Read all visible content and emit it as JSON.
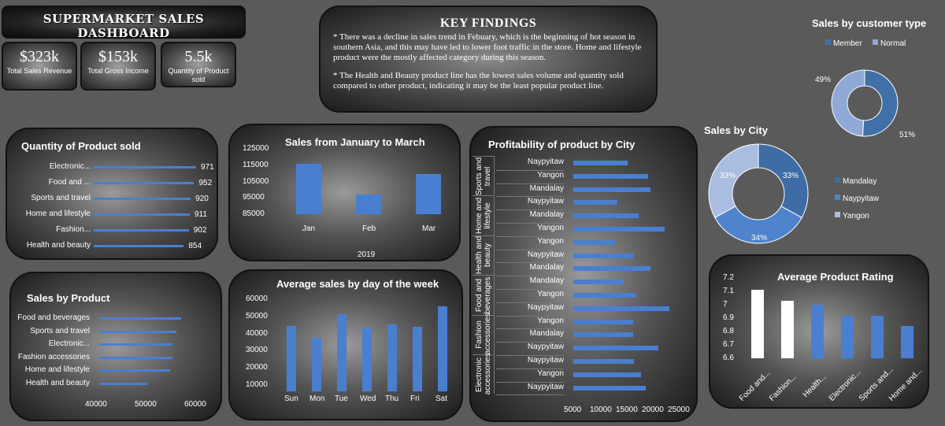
{
  "dashboard": {
    "title": "SUPERMARKET  SALES DASHBOARD",
    "kpis": [
      {
        "value": "$323k",
        "caption": "Total Sales Revenue"
      },
      {
        "value": "$153k",
        "caption": "Total Gross Income"
      },
      {
        "value": "5.5k",
        "caption": "Quantity of Product sold"
      }
    ],
    "findings": {
      "heading": "KEY FINDINGS",
      "p1": "* There was a decline in sales trend in Febuary, which is the beginning of hot season in southern Asia, and this may have led to lower foot traffic in the store. Home and lifestyle product were the mostly affected category during this season.",
      "p2": "* The Health and Beauty product line has the lowest sales volume and quantity sold compared to other product, indicating it may be the least popular product line."
    }
  },
  "chart_data": [
    {
      "id": "quantity",
      "type": "bar",
      "title": "Quantity of Product sold",
      "categories": [
        "Electronic...",
        "Food and ...",
        "Sports and travel",
        "Home and lifestyle",
        "Fashion...",
        "Health and beauty"
      ],
      "values": [
        971,
        952,
        920,
        911,
        902,
        854
      ],
      "value_labels": [
        "971",
        "952",
        "920",
        "911",
        "902",
        "854"
      ],
      "orientation": "horizontal"
    },
    {
      "id": "monthly",
      "type": "bar",
      "title": "Sales from January to March",
      "categories": [
        "Jan",
        "Feb",
        "Mar"
      ],
      "values": [
        116000,
        97000,
        109500
      ],
      "yticks": [
        "125000",
        "115000",
        "105000",
        "95000",
        "85000"
      ],
      "ylim": [
        85000,
        125000
      ],
      "xlabel": "2019"
    },
    {
      "id": "profitability",
      "type": "bar",
      "title": "Profitability of product by City",
      "orientation": "horizontal",
      "groups": [
        {
          "name": "Sports and travel",
          "rows": [
            {
              "city": "Naypyitaw",
              "value": 15200
            },
            {
              "city": "Yangon",
              "value": 19500
            },
            {
              "city": "Mandalay",
              "value": 20000
            }
          ]
        },
        {
          "name": "Home and lifestyle",
          "rows": [
            {
              "city": "Naypyitaw",
              "value": 13000
            },
            {
              "city": "Mandalay",
              "value": 17500
            },
            {
              "city": "Yangon",
              "value": 23000
            }
          ]
        },
        {
          "name": "Health and beauty",
          "rows": [
            {
              "city": "Yangon",
              "value": 12500
            },
            {
              "city": "Naypyitaw",
              "value": 16300
            },
            {
              "city": "Mandalay",
              "value": 20000
            }
          ]
        },
        {
          "name": "Food and beverages",
          "rows": [
            {
              "city": "Mandalay",
              "value": 14300
            },
            {
              "city": "Yangon",
              "value": 17000
            },
            {
              "city": "Naypyitaw",
              "value": 24000
            }
          ]
        },
        {
          "name": "Fashion accessories",
          "rows": [
            {
              "city": "Yangon",
              "value": 16300
            },
            {
              "city": "Mandalay",
              "value": 16300
            },
            {
              "city": "Naypyitaw",
              "value": 21600
            }
          ]
        },
        {
          "name": "Electronic accessories",
          "rows": [
            {
              "city": "Naypyitaw",
              "value": 16500
            },
            {
              "city": "Yangon",
              "value": 18000
            },
            {
              "city": "Naypyitaw",
              "value": 19000
            }
          ]
        }
      ],
      "xticks": [
        "5000",
        "10000",
        "15000",
        "20000",
        "25000"
      ],
      "xlim": [
        5000,
        25000
      ]
    },
    {
      "id": "customer",
      "type": "pie",
      "title": "Sales by customer type",
      "donut": true,
      "slices": [
        {
          "name": "Member",
          "value": 51,
          "label": "51%",
          "color": "#4170a8"
        },
        {
          "name": "Normal",
          "value": 49,
          "label": "49%",
          "color": "#8ea9d6"
        }
      ],
      "legend": "top"
    },
    {
      "id": "city",
      "type": "pie",
      "title": "Sales by City",
      "donut": true,
      "slices": [
        {
          "name": "Mandalay",
          "value": 33,
          "label": "33%",
          "color": "#3e6da6"
        },
        {
          "name": "Naypyitaw",
          "value": 34,
          "label": "34%",
          "color": "#4f84cc"
        },
        {
          "name": "Yangon",
          "value": 33,
          "label": "33%",
          "color": "#a8bde0"
        }
      ],
      "legend": "right"
    },
    {
      "id": "product_sales",
      "type": "bar",
      "title": "Sales by Product",
      "orientation": "horizontal",
      "categories": [
        "Food and beverages",
        "Sports and travel",
        "Electronic...",
        "Fashion accessories",
        "Home and lifestyle",
        "Health and beauty"
      ],
      "values": [
        56100,
        55100,
        54300,
        54300,
        53900,
        49200
      ],
      "xticks": [
        "40000",
        "50000",
        "60000"
      ],
      "xlim": [
        40000,
        60000
      ]
    },
    {
      "id": "weekday",
      "type": "bar",
      "title": "Average sales by day of the week",
      "categories": [
        "Sun",
        "Mon",
        "Tue",
        "Wed",
        "Thu",
        "Fri",
        "Sat"
      ],
      "values": [
        44500,
        37600,
        51500,
        43700,
        45400,
        43900,
        56100
      ],
      "yticks": [
        "60000",
        "50000",
        "40000",
        "30000",
        "20000",
        "10000"
      ],
      "ylim": [
        10000,
        60000
      ]
    },
    {
      "id": "rating",
      "type": "bar",
      "title": "Average Product Rating",
      "categories": [
        "Food and...",
        "Fashion...",
        "Health...",
        "Electronic...",
        "Sports and...",
        "Home and..."
      ],
      "values": [
        7.11,
        7.03,
        7.0,
        6.92,
        6.92,
        6.84
      ],
      "colors": [
        "#ffffff",
        "#ffffff",
        "#4a7fd0",
        "#4a7fd0",
        "#4a7fd0",
        "#4a7fd0"
      ],
      "yticks": [
        "7.2",
        "7.1",
        "7",
        "6.9",
        "6.8",
        "6.7",
        "6.6"
      ],
      "ylim": [
        6.6,
        7.2
      ]
    }
  ]
}
